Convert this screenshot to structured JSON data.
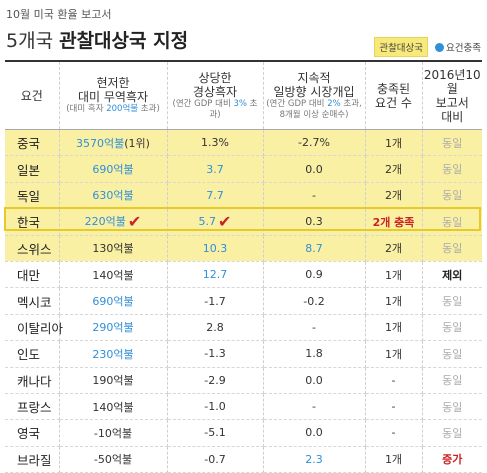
{
  "header": {
    "supertitle": "10월 미국 환율 보고서",
    "title_plain": "5개국 ",
    "title_bold": "관찰대상국 지정",
    "legend_box": "관찰대상국",
    "legend_dot": "요건충족"
  },
  "table": {
    "headers": [
      {
        "main": "요건",
        "sub": ""
      },
      {
        "main": "현저한\n대미 무역흑자",
        "sub_pre": "(대미 흑자 ",
        "sub_hl": "200억불",
        "sub_post": " 초과)"
      },
      {
        "main": "상당한\n경상흑자",
        "sub_pre": "(연간 GDP 대비 ",
        "sub_hl": "3%",
        "sub_post": " 초과)"
      },
      {
        "main": "지속적\n일방향 시장개입",
        "sub_pre": "(연간 GDP 대비 ",
        "sub_hl": "2%",
        "sub_post": " 초과,\n8개월 이상 순매수)"
      },
      {
        "main": "충족된\n요건 수",
        "sub": ""
      },
      {
        "main": "2016년10월\n보고서\n대비",
        "sub": ""
      }
    ],
    "rows": [
      {
        "name": "중국",
        "trade": "3570억불",
        "trade_extra": "(1위)",
        "trade_met": true,
        "current": "1.3%",
        "current_met": false,
        "fx": "-2.7%",
        "fx_met": false,
        "count": "1개",
        "count_red": false,
        "compare": "동일",
        "compare_style": "gray",
        "hl": true
      },
      {
        "name": "일본",
        "trade": "690억불",
        "trade_extra": "",
        "trade_met": true,
        "current": "3.7",
        "current_met": true,
        "fx": "0.0",
        "fx_met": false,
        "count": "2개",
        "count_red": false,
        "compare": "동일",
        "compare_style": "gray",
        "hl": true
      },
      {
        "name": "독일",
        "trade": "630억불",
        "trade_extra": "",
        "trade_met": true,
        "current": "7.7",
        "current_met": true,
        "fx": "-",
        "fx_met": false,
        "count": "2개",
        "count_red": false,
        "compare": "동일",
        "compare_style": "gray",
        "hl": true
      },
      {
        "name": "한국",
        "trade": "220억불",
        "trade_extra": "",
        "trade_met": true,
        "current": "5.7",
        "current_met": true,
        "fx": "0.3",
        "fx_met": false,
        "count": "2개 충족",
        "count_red": true,
        "compare": "동일",
        "compare_style": "gray",
        "hl": true,
        "check": true
      },
      {
        "name": "스위스",
        "trade": "130억불",
        "trade_extra": "",
        "trade_met": false,
        "current": "10.3",
        "current_met": true,
        "fx": "8.7",
        "fx_met": true,
        "count": "2개",
        "count_red": false,
        "compare": "동일",
        "compare_style": "gray",
        "hl": true
      },
      {
        "name": "대만",
        "trade": "140억불",
        "trade_extra": "",
        "trade_met": false,
        "current": "12.7",
        "current_met": true,
        "fx": "0.9",
        "fx_met": false,
        "count": "1개",
        "count_red": false,
        "compare": "제외",
        "compare_style": "bold",
        "hl": false
      },
      {
        "name": "멕시코",
        "trade": "690억불",
        "trade_extra": "",
        "trade_met": true,
        "current": "-1.7",
        "current_met": false,
        "fx": "-0.2",
        "fx_met": false,
        "count": "1개",
        "count_red": false,
        "compare": "동일",
        "compare_style": "gray",
        "hl": false
      },
      {
        "name": "이탈리아",
        "trade": "290억불",
        "trade_extra": "",
        "trade_met": true,
        "current": "2.8",
        "current_met": false,
        "fx": "-",
        "fx_met": false,
        "count": "1개",
        "count_red": false,
        "compare": "동일",
        "compare_style": "gray",
        "hl": false
      },
      {
        "name": "인도",
        "trade": "230억불",
        "trade_extra": "",
        "trade_met": true,
        "current": "-1.3",
        "current_met": false,
        "fx": "1.8",
        "fx_met": false,
        "count": "1개",
        "count_red": false,
        "compare": "동일",
        "compare_style": "gray",
        "hl": false
      },
      {
        "name": "캐나다",
        "trade": "190억불",
        "trade_extra": "",
        "trade_met": false,
        "current": "-2.9",
        "current_met": false,
        "fx": "0.0",
        "fx_met": false,
        "count": "-",
        "count_red": false,
        "compare": "동일",
        "compare_style": "gray",
        "hl": false
      },
      {
        "name": "프랑스",
        "trade": "140억불",
        "trade_extra": "",
        "trade_met": false,
        "current": "-1.0",
        "current_met": false,
        "fx": "-",
        "fx_met": false,
        "count": "-",
        "count_red": false,
        "compare": "동일",
        "compare_style": "gray",
        "hl": false
      },
      {
        "name": "영국",
        "trade": "-10억불",
        "trade_extra": "",
        "trade_met": false,
        "current": "-5.1",
        "current_met": false,
        "fx": "0.0",
        "fx_met": false,
        "count": "-",
        "count_red": false,
        "compare": "동일",
        "compare_style": "gray",
        "hl": false
      },
      {
        "name": "브라질",
        "trade": "-50억불",
        "trade_extra": "",
        "trade_met": false,
        "current": "-0.7",
        "current_met": false,
        "fx": "2.3",
        "fx_met": true,
        "count": "1개",
        "count_red": false,
        "compare": "증가",
        "compare_style": "red",
        "hl": false
      }
    ]
  },
  "colors": {
    "accent_blue": "#2f8fd9",
    "highlight_yellow": "#faf0a4",
    "red": "#cc2222"
  }
}
